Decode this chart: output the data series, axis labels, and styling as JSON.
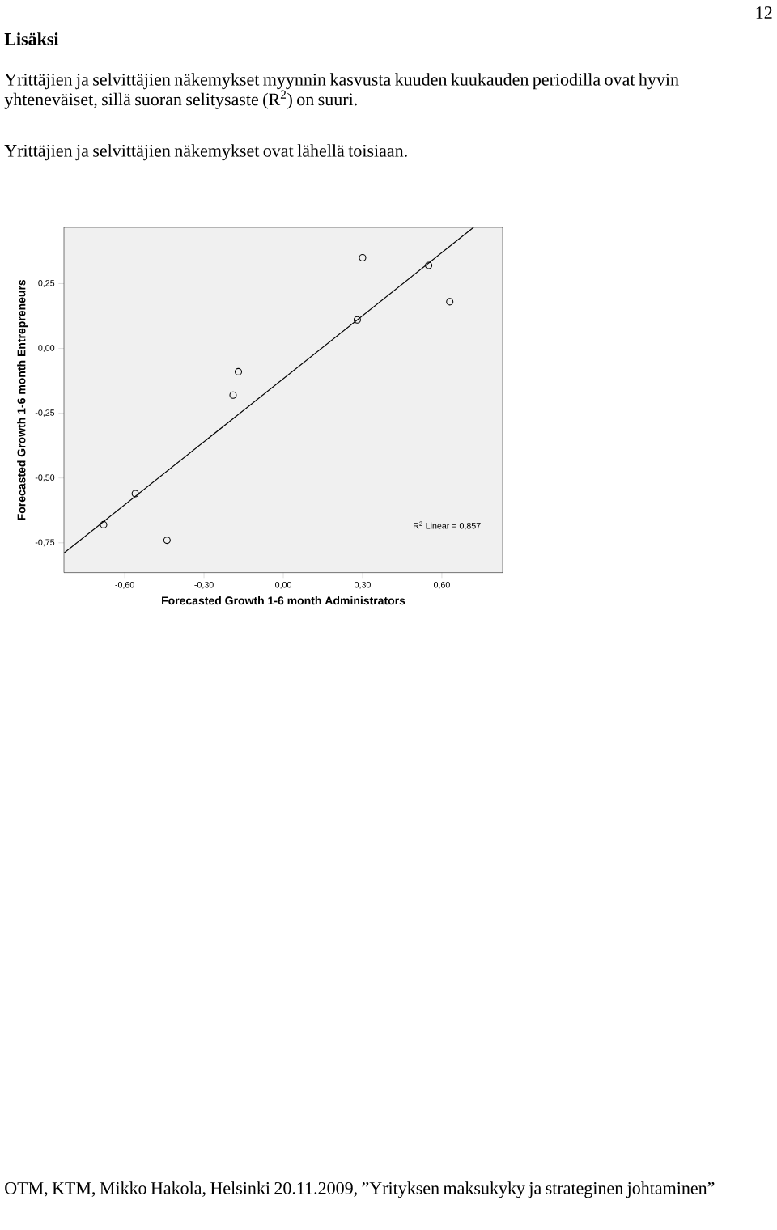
{
  "chart_data": {
    "type": "scatter",
    "title": "Lisäksi",
    "xlabel": "Forecasted Growth 1-6 month Administrators",
    "ylabel": "Forecasted Growth 1-6 month Entrepreneurs",
    "xlim": [
      -0.83,
      0.83
    ],
    "ylim": [
      -0.865,
      0.467
    ],
    "xticks": [
      {
        "value": -0.6,
        "label": "-0,60"
      },
      {
        "value": -0.3,
        "label": "-0,30"
      },
      {
        "value": 0,
        "label": "0,00"
      },
      {
        "value": 0.3,
        "label": "0,30"
      },
      {
        "value": 0.6,
        "label": "0,60"
      }
    ],
    "yticks": [
      {
        "value": -0.75,
        "label": "-0,75"
      },
      {
        "value": -0.5,
        "label": "-0,50"
      },
      {
        "value": -0.25,
        "label": "-0,25"
      },
      {
        "value": 0,
        "label": "0,00"
      },
      {
        "value": 0.25,
        "label": "0,25"
      }
    ],
    "series": [
      {
        "type": "scatter",
        "color": "#000000",
        "x": [
          -0.68,
          -0.56,
          -0.44,
          -0.19,
          -0.17,
          0.28,
          0.3,
          0.55,
          0.63
        ],
        "values": [
          -0.68,
          -0.56,
          -0.74,
          -0.18,
          -0.09,
          0.11,
          0.35,
          0.32,
          0.18
        ]
      },
      {
        "type": "line",
        "color": "#000000",
        "marker": "none",
        "x": [
          -0.83,
          0.72
        ],
        "values": [
          -0.79,
          0.467
        ]
      }
    ],
    "marker": "circle",
    "grid": false,
    "annotations": [
      "12",
      "Yrittäjien ja selvittäjien näkemykset myynnin kasvusta kuuden kuukauden periodilla ovat hyvin yhteneväiset, sillä suoran selitysaste (R$^{2}$) on suuri.",
      "Yrittäjien ja selvittäjien näkemykset ovat lähellä toisiaan.",
      "R$^{2}$ Linear = 0,857",
      "OTM, KTM, Mikko Hakola, Helsinki 20.11.2009, ”Yrityksen maksukyky ja strateginen johtaminen”"
    ]
  }
}
